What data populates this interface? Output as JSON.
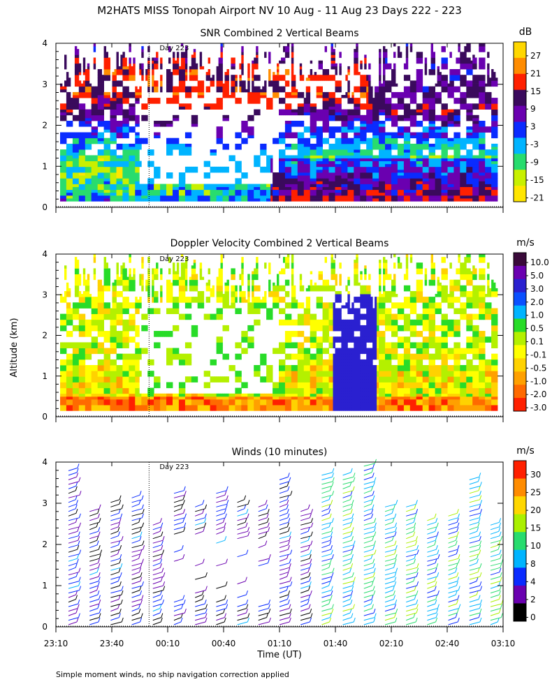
{
  "figure": {
    "title": "M2HATS MISS Tonopah Airport NV  10 Aug - 11 Aug 23 Days 222 - 223",
    "ylabel": "Altitude (km)",
    "xlabel": "Time (UT)",
    "footnote": "Simple moment winds, no ship navigation correction applied"
  },
  "chart_data": [
    {
      "type": "heatmap",
      "title": "SNR Combined 2 Vertical Beams",
      "ylim": [
        0,
        4
      ],
      "yticks": [
        "0",
        "1",
        "2",
        "3",
        "4"
      ],
      "xticks": [],
      "day_marker": {
        "time": "00:00",
        "label": "Day 223"
      },
      "colorbar": {
        "unit": "dB",
        "labels": [
          "27",
          "21",
          "15",
          "9",
          "3",
          "-3",
          "-9",
          "-15",
          "-21"
        ],
        "colors": [
          "#ffd700",
          "#ff8c00",
          "#ff2000",
          "#3a0a5c",
          "#6a00b0",
          "#0a2bff",
          "#00b4ff",
          "#28dc6e",
          "#c8f000",
          "#ffe600"
        ]
      }
    },
    {
      "type": "heatmap",
      "title": "Doppler Velocity Combined 2 Vertical Beams",
      "ylim": [
        0,
        4
      ],
      "yticks": [
        "0",
        "1",
        "2",
        "3",
        "4"
      ],
      "xticks": [],
      "day_marker": {
        "time": "00:00",
        "label": "Day 223"
      },
      "colorbar": {
        "unit": "m/s",
        "labels": [
          "10.0",
          "5.0",
          "3.0",
          "2.0",
          "1.0",
          "0.5",
          "0.1",
          "-0.1",
          "-0.5",
          "-1.0",
          "-2.0",
          "-3.0"
        ],
        "colors": [
          "#3a0a3a",
          "#6a00b0",
          "#2a20d0",
          "#0a50ff",
          "#00b4ff",
          "#28dc28",
          "#b4f000",
          "#ffff00",
          "#ffd200",
          "#ffa000",
          "#ff6a00",
          "#ff2000"
        ]
      }
    },
    {
      "type": "scatter",
      "title": "Winds (10 minutes)",
      "ylim": [
        0,
        4
      ],
      "yticks": [
        "0",
        "1",
        "2",
        "3",
        "4"
      ],
      "xticks": [
        "23:10",
        "23:40",
        "00:10",
        "00:40",
        "01:10",
        "01:40",
        "02:10",
        "02:40",
        "03:10"
      ],
      "day_marker": {
        "time": "00:00",
        "label": "Day 223"
      },
      "colorbar": {
        "unit": "m/s",
        "labels": [
          "30",
          "25",
          "20",
          "15",
          "10",
          "8",
          "4",
          "2",
          "0"
        ],
        "colors": [
          "#ff2000",
          "#ff8c00",
          "#ffd700",
          "#aaf000",
          "#28dc6e",
          "#00b4ff",
          "#0a2bff",
          "#6a00b0",
          "#000000"
        ]
      }
    }
  ]
}
